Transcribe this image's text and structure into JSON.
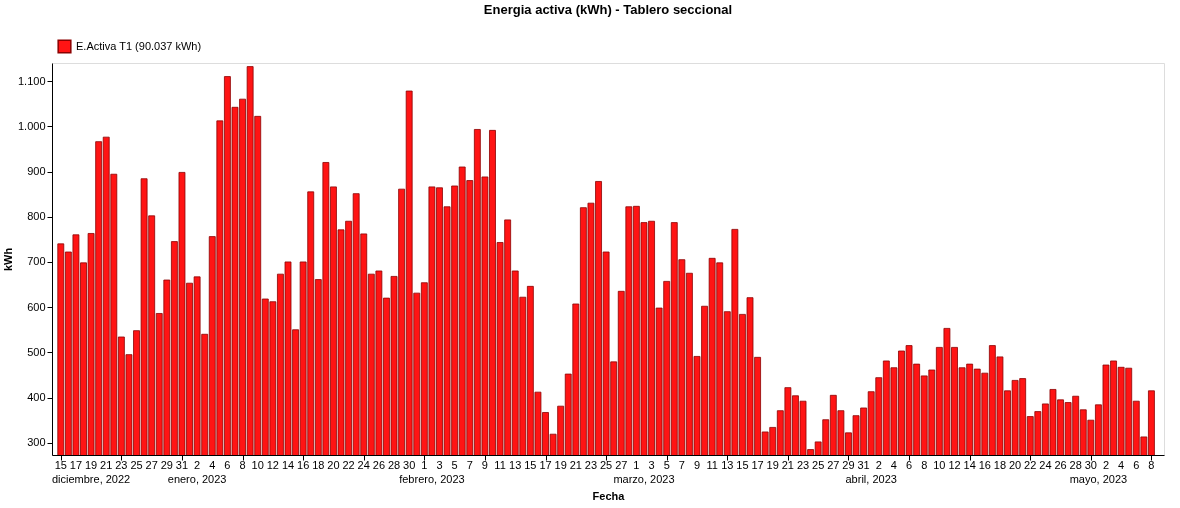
{
  "chart_data": {
    "type": "bar",
    "title": "Energia activa (kWh) - Tablero seccional",
    "xlabel": "Fecha",
    "ylabel": "kWh",
    "x": [
      "2022-12-15",
      "2022-12-16",
      "2022-12-17",
      "2022-12-18",
      "2022-12-19",
      "2022-12-20",
      "2022-12-21",
      "2022-12-22",
      "2022-12-23",
      "2022-12-24",
      "2022-12-25",
      "2022-12-26",
      "2022-12-27",
      "2022-12-28",
      "2022-12-29",
      "2022-12-30",
      "2022-12-31",
      "2023-01-01",
      "2023-01-02",
      "2023-01-03",
      "2023-01-04",
      "2023-01-05",
      "2023-01-06",
      "2023-01-07",
      "2023-01-08",
      "2023-01-09",
      "2023-01-10",
      "2023-01-11",
      "2023-01-12",
      "2023-01-13",
      "2023-01-14",
      "2023-01-15",
      "2023-01-16",
      "2023-01-17",
      "2023-01-18",
      "2023-01-19",
      "2023-01-20",
      "2023-01-21",
      "2023-01-22",
      "2023-01-23",
      "2023-01-24",
      "2023-01-25",
      "2023-01-26",
      "2023-01-27",
      "2023-01-28",
      "2023-01-29",
      "2023-01-30",
      "2023-01-31",
      "2023-02-01",
      "2023-02-02",
      "2023-02-03",
      "2023-02-04",
      "2023-02-05",
      "2023-02-06",
      "2023-02-07",
      "2023-02-08",
      "2023-02-09",
      "2023-02-10",
      "2023-02-11",
      "2023-02-12",
      "2023-02-13",
      "2023-02-14",
      "2023-02-15",
      "2023-02-16",
      "2023-02-17",
      "2023-02-18",
      "2023-02-19",
      "2023-02-20",
      "2023-02-21",
      "2023-02-22",
      "2023-02-23",
      "2023-02-24",
      "2023-02-25",
      "2023-02-26",
      "2023-02-27",
      "2023-02-28",
      "2023-03-01",
      "2023-03-02",
      "2023-03-03",
      "2023-03-04",
      "2023-03-05",
      "2023-03-06",
      "2023-03-07",
      "2023-03-08",
      "2023-03-09",
      "2023-03-10",
      "2023-03-11",
      "2023-03-12",
      "2023-03-13",
      "2023-03-14",
      "2023-03-15",
      "2023-03-16",
      "2023-03-17",
      "2023-03-18",
      "2023-03-19",
      "2023-03-20",
      "2023-03-21",
      "2023-03-22",
      "2023-03-23",
      "2023-03-24",
      "2023-03-25",
      "2023-03-26",
      "2023-03-27",
      "2023-03-28",
      "2023-03-29",
      "2023-03-30",
      "2023-03-31",
      "2023-04-01",
      "2023-04-02",
      "2023-04-03",
      "2023-04-04",
      "2023-04-05",
      "2023-04-06",
      "2023-04-07",
      "2023-04-08",
      "2023-04-09",
      "2023-04-10",
      "2023-04-11",
      "2023-04-12",
      "2023-04-13",
      "2023-04-14",
      "2023-04-15",
      "2023-04-16",
      "2023-04-17",
      "2023-04-18",
      "2023-04-19",
      "2023-04-20",
      "2023-04-21",
      "2023-04-22",
      "2023-04-23",
      "2023-04-24",
      "2023-04-25",
      "2023-04-26",
      "2023-04-27",
      "2023-04-28",
      "2023-04-29",
      "2023-04-30",
      "2023-05-01",
      "2023-05-02",
      "2023-05-03",
      "2023-05-04",
      "2023-05-05",
      "2023-05-06",
      "2023-05-07",
      "2023-05-08"
    ],
    "series": [
      {
        "name": "E.Activa T1 (90.037 kWh)",
        "color": "#ff1414",
        "values": [
          740,
          722,
          760,
          698,
          763,
          966,
          976,
          894,
          534,
          495,
          548,
          884,
          802,
          586,
          660,
          745,
          898,
          653,
          667,
          540,
          756,
          1012,
          1110,
          1042,
          1060,
          1132,
          1022,
          618,
          612,
          673,
          700,
          550,
          700,
          855,
          661,
          920,
          866,
          771,
          790,
          851,
          762,
          673,
          680,
          620,
          668,
          861,
          1078,
          631,
          654,
          866,
          864,
          822,
          868,
          910,
          880,
          993,
          888,
          991,
          743,
          793,
          680,
          622,
          646,
          412,
          367,
          319,
          381,
          452,
          607,
          820,
          830,
          878,
          722,
          479,
          635,
          822,
          823,
          787,
          790,
          598,
          657,
          787,
          705,
          675,
          491,
          602,
          708,
          698,
          590,
          772,
          584,
          621,
          489,
          324,
          334,
          371,
          422,
          404,
          392,
          285,
          302,
          351,
          405,
          371,
          322,
          360,
          377,
          413,
          444,
          481,
          466,
          503,
          515,
          474,
          448,
          461,
          511,
          553,
          511,
          466,
          474,
          463,
          454,
          515,
          490,
          415,
          438,
          442,
          358,
          369,
          386,
          418,
          395,
          389,
          403,
          373,
          350,
          384,
          472,
          481,
          467,
          465,
          392,
          313,
          415
        ]
      }
    ],
    "xlim": [
      "2022-12-14T12:00",
      "2023-05-09"
    ],
    "xticks": [
      {
        "value": "2022-12-15",
        "label": "15"
      },
      {
        "value": "2022-12-17",
        "label": "17"
      },
      {
        "value": "2022-12-19",
        "label": "19"
      },
      {
        "value": "2022-12-21",
        "label": "21"
      },
      {
        "value": "2022-12-23",
        "label": "23"
      },
      {
        "value": "2022-12-25",
        "label": "25"
      },
      {
        "value": "2022-12-27",
        "label": "27"
      },
      {
        "value": "2022-12-29",
        "label": "29"
      },
      {
        "value": "2022-12-31",
        "label": "31"
      },
      {
        "value": "2023-01-02",
        "label": "2"
      },
      {
        "value": "2023-01-04",
        "label": "4"
      },
      {
        "value": "2023-01-06",
        "label": "6"
      },
      {
        "value": "2023-01-08",
        "label": "8"
      },
      {
        "value": "2023-01-10",
        "label": "10"
      },
      {
        "value": "2023-01-12",
        "label": "12"
      },
      {
        "value": "2023-01-14",
        "label": "14"
      },
      {
        "value": "2023-01-16",
        "label": "16"
      },
      {
        "value": "2023-01-18",
        "label": "18"
      },
      {
        "value": "2023-01-20",
        "label": "20"
      },
      {
        "value": "2023-01-22",
        "label": "22"
      },
      {
        "value": "2023-01-24",
        "label": "24"
      },
      {
        "value": "2023-01-26",
        "label": "26"
      },
      {
        "value": "2023-01-28",
        "label": "28"
      },
      {
        "value": "2023-01-30",
        "label": "30"
      },
      {
        "value": "2023-02-01",
        "label": "1"
      },
      {
        "value": "2023-02-03",
        "label": "3"
      },
      {
        "value": "2023-02-05",
        "label": "5"
      },
      {
        "value": "2023-02-07",
        "label": "7"
      },
      {
        "value": "2023-02-09",
        "label": "9"
      },
      {
        "value": "2023-02-11",
        "label": "11"
      },
      {
        "value": "2023-02-13",
        "label": "13"
      },
      {
        "value": "2023-02-15",
        "label": "15"
      },
      {
        "value": "2023-02-17",
        "label": "17"
      },
      {
        "value": "2023-02-19",
        "label": "19"
      },
      {
        "value": "2023-02-21",
        "label": "21"
      },
      {
        "value": "2023-02-23",
        "label": "23"
      },
      {
        "value": "2023-02-25",
        "label": "25"
      },
      {
        "value": "2023-02-27",
        "label": "27"
      },
      {
        "value": "2023-03-01",
        "label": "1"
      },
      {
        "value": "2023-03-03",
        "label": "3"
      },
      {
        "value": "2023-03-05",
        "label": "5"
      },
      {
        "value": "2023-03-07",
        "label": "7"
      },
      {
        "value": "2023-03-09",
        "label": "9"
      },
      {
        "value": "2023-03-11",
        "label": "11"
      },
      {
        "value": "2023-03-13",
        "label": "13"
      },
      {
        "value": "2023-03-15",
        "label": "15"
      },
      {
        "value": "2023-03-17",
        "label": "17"
      },
      {
        "value": "2023-03-19",
        "label": "19"
      },
      {
        "value": "2023-03-21",
        "label": "21"
      },
      {
        "value": "2023-03-23",
        "label": "23"
      },
      {
        "value": "2023-03-25",
        "label": "25"
      },
      {
        "value": "2023-03-27",
        "label": "27"
      },
      {
        "value": "2023-03-29",
        "label": "29"
      },
      {
        "value": "2023-03-31",
        "label": "31"
      },
      {
        "value": "2023-04-02",
        "label": "2"
      },
      {
        "value": "2023-04-04",
        "label": "4"
      },
      {
        "value": "2023-04-06",
        "label": "6"
      },
      {
        "value": "2023-04-08",
        "label": "8"
      },
      {
        "value": "2023-04-10",
        "label": "10"
      },
      {
        "value": "2023-04-12",
        "label": "12"
      },
      {
        "value": "2023-04-14",
        "label": "14"
      },
      {
        "value": "2023-04-16",
        "label": "16"
      },
      {
        "value": "2023-04-18",
        "label": "18"
      },
      {
        "value": "2023-04-20",
        "label": "20"
      },
      {
        "value": "2023-04-22",
        "label": "22"
      },
      {
        "value": "2023-04-24",
        "label": "24"
      },
      {
        "value": "2023-04-26",
        "label": "26"
      },
      {
        "value": "2023-04-28",
        "label": "28"
      },
      {
        "value": "2023-04-30",
        "label": "30"
      },
      {
        "value": "2023-05-02",
        "label": "2"
      },
      {
        "value": "2023-05-04",
        "label": "4"
      },
      {
        "value": "2023-05-06",
        "label": "6"
      },
      {
        "value": "2023-05-08",
        "label": "8"
      }
    ],
    "ylim": [
      273,
      1140
    ],
    "yticks": [
      {
        "value": 300,
        "label": "300"
      },
      {
        "value": 400,
        "label": "400"
      },
      {
        "value": 500,
        "label": "500"
      },
      {
        "value": 600,
        "label": "600"
      },
      {
        "value": 700,
        "label": "700"
      },
      {
        "value": 800,
        "label": "800"
      },
      {
        "value": 900,
        "label": "900"
      },
      {
        "value": 1000,
        "label": "1.000"
      },
      {
        "value": 1100,
        "label": "1.100"
      }
    ],
    "annotations": [
      {
        "text": "diciembre, 2022",
        "x": "2022-12-19"
      },
      {
        "text": "enero, 2023",
        "x": "2023-01-02"
      },
      {
        "text": "febrero, 2023",
        "x": "2023-02-02"
      },
      {
        "text": "marzo, 2023",
        "x": "2023-03-02"
      },
      {
        "text": "abril, 2023",
        "x": "2023-04-01"
      },
      {
        "text": "mayo, 2023",
        "x": "2023-05-01"
      }
    ],
    "grid": false,
    "legend": "top left"
  }
}
